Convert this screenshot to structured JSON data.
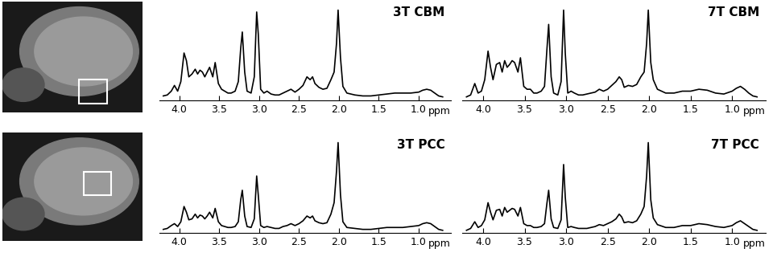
{
  "chart_data": [
    {
      "type": "line",
      "title": "3T CBM",
      "color": "#000000",
      "xlabel": "ppm",
      "tick_labels": "x",
      "xlim": [
        4.25,
        0.6
      ],
      "xticks": [
        4.0,
        3.5,
        3.0,
        2.5,
        2.0,
        1.5,
        1.0
      ],
      "ylim": [
        0,
        1
      ],
      "x": [
        4.2,
        4.15,
        4.1,
        4.06,
        4.02,
        3.98,
        3.94,
        3.91,
        3.88,
        3.84,
        3.8,
        3.77,
        3.74,
        3.71,
        3.68,
        3.65,
        3.62,
        3.58,
        3.55,
        3.51,
        3.47,
        3.43,
        3.39,
        3.35,
        3.3,
        3.26,
        3.23,
        3.21,
        3.18,
        3.15,
        3.1,
        3.06,
        3.03,
        3.01,
        2.98,
        2.94,
        2.9,
        2.85,
        2.8,
        2.75,
        2.7,
        2.65,
        2.6,
        2.55,
        2.5,
        2.45,
        2.4,
        2.36,
        2.33,
        2.3,
        2.25,
        2.2,
        2.15,
        2.1,
        2.06,
        2.03,
        2.01,
        1.98,
        1.95,
        1.9,
        1.8,
        1.7,
        1.6,
        1.5,
        1.4,
        1.3,
        1.2,
        1.1,
        1.0,
        0.95,
        0.9,
        0.85,
        0.8,
        0.75,
        0.7
      ],
      "values": [
        0.05,
        0.06,
        0.1,
        0.16,
        0.1,
        0.2,
        0.5,
        0.42,
        0.25,
        0.28,
        0.33,
        0.28,
        0.32,
        0.3,
        0.25,
        0.3,
        0.35,
        0.25,
        0.4,
        0.18,
        0.12,
        0.1,
        0.08,
        0.08,
        0.1,
        0.2,
        0.55,
        0.72,
        0.3,
        0.1,
        0.08,
        0.25,
        0.93,
        0.7,
        0.12,
        0.08,
        0.1,
        0.07,
        0.06,
        0.06,
        0.08,
        0.1,
        0.12,
        0.09,
        0.12,
        0.16,
        0.25,
        0.22,
        0.25,
        0.18,
        0.14,
        0.12,
        0.13,
        0.22,
        0.3,
        0.6,
        0.95,
        0.45,
        0.15,
        0.08,
        0.06,
        0.05,
        0.05,
        0.06,
        0.07,
        0.08,
        0.08,
        0.08,
        0.09,
        0.11,
        0.12,
        0.11,
        0.08,
        0.05,
        0.04
      ]
    },
    {
      "type": "line",
      "title": "7T CBM",
      "color": "#000000",
      "xlabel": "ppm",
      "tick_labels": "x",
      "xlim": [
        4.25,
        0.6
      ],
      "xticks": [
        4.0,
        3.5,
        3.0,
        2.5,
        2.0,
        1.5,
        1.0
      ],
      "ylim": [
        0,
        1
      ],
      "x": [
        4.2,
        4.15,
        4.1,
        4.06,
        4.02,
        3.98,
        3.94,
        3.91,
        3.88,
        3.84,
        3.8,
        3.77,
        3.74,
        3.71,
        3.68,
        3.65,
        3.62,
        3.58,
        3.55,
        3.51,
        3.47,
        3.43,
        3.39,
        3.35,
        3.3,
        3.26,
        3.23,
        3.21,
        3.18,
        3.15,
        3.1,
        3.06,
        3.03,
        3.01,
        2.98,
        2.94,
        2.9,
        2.85,
        2.8,
        2.75,
        2.7,
        2.65,
        2.6,
        2.55,
        2.5,
        2.45,
        2.4,
        2.36,
        2.33,
        2.3,
        2.25,
        2.2,
        2.15,
        2.1,
        2.06,
        2.03,
        2.01,
        1.98,
        1.95,
        1.9,
        1.8,
        1.7,
        1.6,
        1.5,
        1.4,
        1.3,
        1.2,
        1.1,
        1.0,
        0.95,
        0.9,
        0.85,
        0.8,
        0.75,
        0.7
      ],
      "values": [
        0.04,
        0.06,
        0.18,
        0.08,
        0.1,
        0.22,
        0.52,
        0.35,
        0.22,
        0.38,
        0.4,
        0.3,
        0.42,
        0.35,
        0.38,
        0.42,
        0.4,
        0.3,
        0.45,
        0.15,
        0.12,
        0.12,
        0.08,
        0.08,
        0.1,
        0.15,
        0.55,
        0.8,
        0.25,
        0.08,
        0.06,
        0.2,
        0.95,
        0.5,
        0.08,
        0.1,
        0.08,
        0.06,
        0.06,
        0.07,
        0.08,
        0.09,
        0.12,
        0.1,
        0.12,
        0.16,
        0.2,
        0.25,
        0.22,
        0.14,
        0.16,
        0.15,
        0.17,
        0.25,
        0.3,
        0.6,
        0.95,
        0.4,
        0.22,
        0.12,
        0.08,
        0.08,
        0.1,
        0.1,
        0.12,
        0.11,
        0.08,
        0.07,
        0.1,
        0.13,
        0.15,
        0.12,
        0.08,
        0.05,
        0.04
      ]
    },
    {
      "type": "line",
      "title": "3T PCC",
      "color": "#000000",
      "xlabel": "ppm",
      "tick_labels": "x",
      "xlim": [
        4.25,
        0.6
      ],
      "xticks": [
        4.0,
        3.5,
        3.0,
        2.5,
        2.0,
        1.5,
        1.0
      ],
      "ylim": [
        0,
        1
      ],
      "x": [
        4.2,
        4.15,
        4.1,
        4.06,
        4.02,
        3.98,
        3.94,
        3.91,
        3.88,
        3.84,
        3.8,
        3.77,
        3.74,
        3.71,
        3.68,
        3.65,
        3.62,
        3.58,
        3.55,
        3.51,
        3.47,
        3.43,
        3.39,
        3.35,
        3.3,
        3.26,
        3.23,
        3.21,
        3.18,
        3.15,
        3.1,
        3.06,
        3.03,
        3.01,
        2.98,
        2.94,
        2.9,
        2.85,
        2.8,
        2.75,
        2.7,
        2.65,
        2.6,
        2.55,
        2.5,
        2.45,
        2.4,
        2.36,
        2.33,
        2.3,
        2.25,
        2.2,
        2.15,
        2.1,
        2.06,
        2.03,
        2.01,
        1.98,
        1.95,
        1.9,
        1.8,
        1.7,
        1.6,
        1.5,
        1.4,
        1.3,
        1.2,
        1.1,
        1.0,
        0.95,
        0.9,
        0.85,
        0.8,
        0.75,
        0.7
      ],
      "values": [
        0.04,
        0.05,
        0.08,
        0.1,
        0.07,
        0.12,
        0.28,
        0.22,
        0.14,
        0.15,
        0.2,
        0.16,
        0.19,
        0.18,
        0.15,
        0.18,
        0.22,
        0.16,
        0.26,
        0.12,
        0.08,
        0.07,
        0.06,
        0.06,
        0.07,
        0.12,
        0.35,
        0.45,
        0.18,
        0.07,
        0.06,
        0.15,
        0.6,
        0.4,
        0.08,
        0.06,
        0.07,
        0.06,
        0.05,
        0.05,
        0.07,
        0.08,
        0.1,
        0.08,
        0.1,
        0.13,
        0.18,
        0.16,
        0.18,
        0.13,
        0.11,
        0.1,
        0.11,
        0.2,
        0.32,
        0.65,
        0.95,
        0.4,
        0.12,
        0.06,
        0.05,
        0.04,
        0.04,
        0.05,
        0.06,
        0.06,
        0.06,
        0.07,
        0.08,
        0.1,
        0.11,
        0.1,
        0.07,
        0.04,
        0.03
      ]
    },
    {
      "type": "line",
      "title": "7T PCC",
      "color": "#000000",
      "xlabel": "ppm",
      "tick_labels": "x",
      "xlim": [
        4.25,
        0.6
      ],
      "xticks": [
        4.0,
        3.5,
        3.0,
        2.5,
        2.0,
        1.5,
        1.0
      ],
      "ylim": [
        0,
        1
      ],
      "x": [
        4.2,
        4.15,
        4.1,
        4.06,
        4.02,
        3.98,
        3.94,
        3.91,
        3.88,
        3.84,
        3.8,
        3.77,
        3.74,
        3.71,
        3.68,
        3.65,
        3.62,
        3.58,
        3.55,
        3.51,
        3.47,
        3.43,
        3.39,
        3.35,
        3.3,
        3.26,
        3.23,
        3.21,
        3.18,
        3.15,
        3.1,
        3.06,
        3.03,
        3.01,
        2.98,
        2.94,
        2.9,
        2.85,
        2.8,
        2.75,
        2.7,
        2.65,
        2.6,
        2.55,
        2.5,
        2.45,
        2.4,
        2.36,
        2.33,
        2.3,
        2.25,
        2.2,
        2.15,
        2.1,
        2.06,
        2.03,
        2.01,
        1.98,
        1.95,
        1.9,
        1.8,
        1.7,
        1.6,
        1.5,
        1.4,
        1.3,
        1.2,
        1.1,
        1.0,
        0.95,
        0.9,
        0.85,
        0.8,
        0.75,
        0.7
      ],
      "values": [
        0.03,
        0.05,
        0.12,
        0.06,
        0.08,
        0.14,
        0.32,
        0.22,
        0.14,
        0.24,
        0.25,
        0.18,
        0.27,
        0.22,
        0.24,
        0.26,
        0.25,
        0.18,
        0.27,
        0.1,
        0.08,
        0.08,
        0.06,
        0.06,
        0.07,
        0.1,
        0.32,
        0.45,
        0.15,
        0.06,
        0.05,
        0.14,
        0.72,
        0.38,
        0.06,
        0.07,
        0.06,
        0.05,
        0.05,
        0.05,
        0.06,
        0.07,
        0.09,
        0.08,
        0.1,
        0.12,
        0.15,
        0.2,
        0.17,
        0.11,
        0.12,
        0.11,
        0.13,
        0.2,
        0.28,
        0.6,
        0.95,
        0.35,
        0.16,
        0.09,
        0.06,
        0.06,
        0.08,
        0.08,
        0.1,
        0.09,
        0.07,
        0.06,
        0.08,
        0.11,
        0.13,
        0.1,
        0.07,
        0.04,
        0.03
      ]
    }
  ]
}
